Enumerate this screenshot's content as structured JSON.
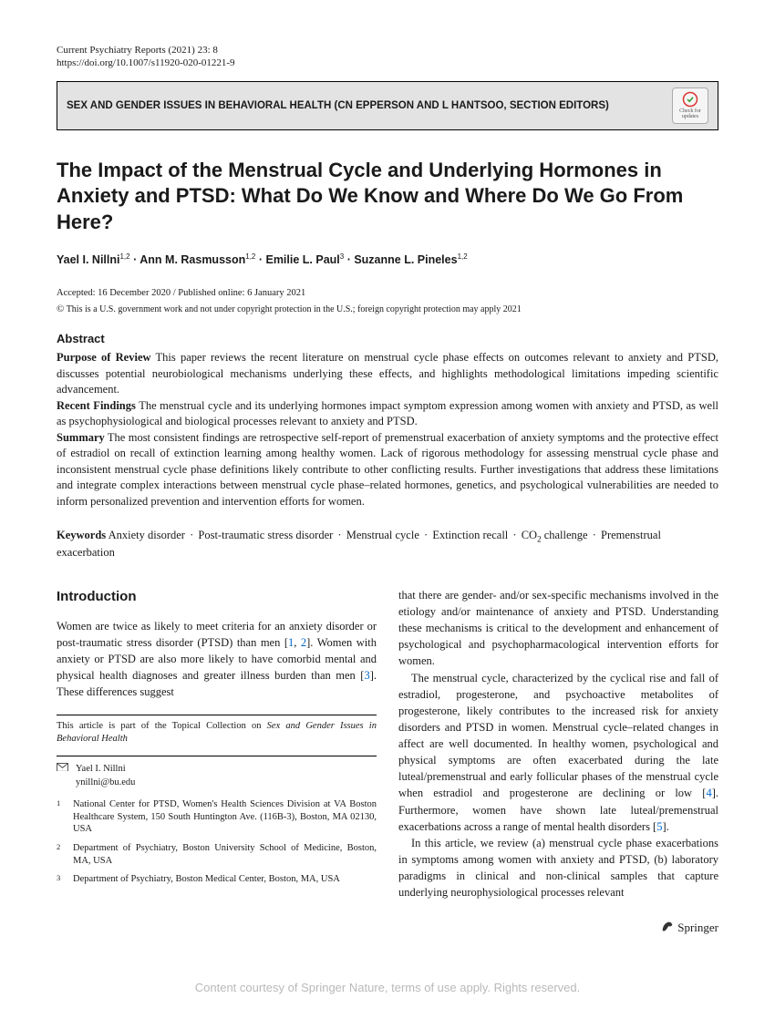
{
  "header": {
    "journal": "Current Psychiatry Reports (2021) 23: 8",
    "doi": "https://doi.org/10.1007/s11920-020-01221-9"
  },
  "section_bar": "SEX AND GENDER ISSUES IN BEHAVIORAL HEALTH (CN EPPERSON AND L HANTSOO, SECTION EDITORS)",
  "check_updates": "Check for updates",
  "title": "The Impact of the Menstrual Cycle and Underlying Hormones in Anxiety and PTSD: What Do We Know and Where Do We Go From Here?",
  "authors_html": "Yael I. Nillni<sup>1,2</sup> · Ann M. Rasmusson<sup>1,2</sup> · Emilie L. Paul<sup>3</sup> · Suzanne L. Pineles<sup>1,2</sup>",
  "accepted": "Accepted: 16 December 2020 / Published online: 6 January 2021",
  "copyright": "This is a U.S. government work and not under copyright protection in the U.S.; foreign copyright protection may apply 2021",
  "abstract": {
    "head": "Abstract",
    "purpose_label": "Purpose of Review",
    "purpose": "This paper reviews the recent literature on menstrual cycle phase effects on outcomes relevant to anxiety and PTSD, discusses potential neurobiological mechanisms underlying these effects, and highlights methodological limitations impeding scientific advancement.",
    "recent_label": "Recent Findings",
    "recent": "The menstrual cycle and its underlying hormones impact symptom expression among women with anxiety and PTSD, as well as psychophysiological and biological processes relevant to anxiety and PTSD.",
    "summary_label": "Summary",
    "summary": "The most consistent findings are retrospective self-report of premenstrual exacerbation of anxiety symptoms and the protective effect of estradiol on recall of extinction learning among healthy women. Lack of rigorous methodology for assessing menstrual cycle phase and inconsistent menstrual cycle phase definitions likely contribute to other conflicting results. Further investigations that address these limitations and integrate complex interactions between menstrual cycle phase–related hormones, genetics, and psychological vulnerabilities are needed to inform personalized prevention and intervention efforts for women."
  },
  "keywords": {
    "label": "Keywords",
    "items": [
      "Anxiety disorder",
      "Post-traumatic stress disorder",
      "Menstrual cycle",
      "Extinction recall",
      "CO₂ challenge",
      "Premenstrual exacerbation"
    ]
  },
  "intro": {
    "head": "Introduction",
    "left_p1_a": "Women are twice as likely to meet criteria for an anxiety disorder or post-traumatic stress disorder (PTSD) than men [",
    "left_p1_b": "]. Women with anxiety or PTSD are also more likely to have comorbid mental and physical health diagnoses and greater illness burden than men [",
    "left_p1_c": "]. These differences suggest",
    "ref1": "1",
    "ref2": "2",
    "ref3": "3",
    "right_p1": "that there are gender- and/or sex-specific mechanisms involved in the etiology and/or maintenance of anxiety and PTSD. Understanding these mechanisms is critical to the development and enhancement of psychological and psychopharmacological intervention efforts for women.",
    "right_p2_a": "The menstrual cycle, characterized by the cyclical rise and fall of estradiol, progesterone, and psychoactive metabolites of progesterone, likely contributes to the increased risk for anxiety disorders and PTSD in women. Menstrual cycle–related changes in affect are well documented. In healthy women, psychological and physical symptoms are often exacerbated during the late luteal/premenstrual and early follicular phases of the menstrual cycle when estradiol and progesterone are declining or low [",
    "ref4": "4",
    "right_p2_b": "]. Furthermore, women have shown late luteal/premenstrual exacerbations across a range of mental health disorders [",
    "ref5": "5",
    "right_p2_c": "].",
    "right_p3": "In this article, we review (a) menstrual cycle phase exacerbations in symptoms among women with anxiety and PTSD, (b) laboratory paradigms in clinical and non-clinical samples that capture underlying neurophysiological processes relevant"
  },
  "topical": {
    "prefix": "This article is part of the Topical Collection on ",
    "italic": "Sex and Gender Issues in Behavioral Health"
  },
  "correspondence": {
    "name": "Yael I. Nillni",
    "email": "ynillni@bu.edu"
  },
  "affiliations": [
    "National Center for PTSD, Women's Health Sciences Division at VA Boston Healthcare System, 150 South Huntington Ave. (116B-3), Boston, MA 02130, USA",
    "Department of Psychiatry, Boston University School of Medicine, Boston, MA, USA",
    "Department of Psychiatry, Boston Medical Center, Boston, MA, USA"
  ],
  "footer": {
    "publisher": "Springer",
    "watermark": "Content courtesy of Springer Nature, terms of use apply. Rights reserved."
  }
}
